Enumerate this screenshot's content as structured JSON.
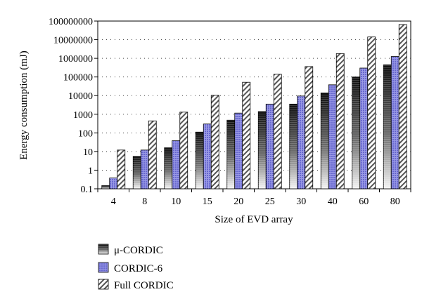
{
  "chart_data": {
    "type": "bar",
    "log_scale_y": true,
    "ylim": [
      0.1,
      100000000
    ],
    "y_ticks": [
      "100000000",
      "10000000",
      "1000000",
      "100000",
      "10000",
      "1000",
      "100",
      "10",
      "1",
      "0.1"
    ],
    "y_tick_values": [
      100000000,
      10000000,
      1000000,
      100000,
      10000,
      1000,
      100,
      10,
      1,
      0.1
    ],
    "xlabel": "Size of EVD array",
    "ylabel": "Energy consumption (mJ)",
    "categories": [
      "4",
      "8",
      "10",
      "15",
      "20",
      "25",
      "30",
      "40",
      "60",
      "80"
    ],
    "grid": "horizontal dotted",
    "legend_position": "bottom-left",
    "series": [
      {
        "name": "μ-CORDIC",
        "pattern": "gradient-dark",
        "values": [
          0.15,
          5.5,
          16,
          110,
          480,
          1400,
          3500,
          14000,
          100000,
          450000
        ]
      },
      {
        "name": "CORDIC-6",
        "pattern": "blue-dotted",
        "values": [
          0.38,
          12,
          38,
          300,
          1150,
          3500,
          9500,
          38000,
          300000,
          1250000
        ]
      },
      {
        "name": "Full CORDIC",
        "pattern": "diagonal-hatch",
        "values": [
          12,
          440,
          1300,
          10500,
          52000,
          140000,
          360000,
          1800000,
          14000000,
          65000000
        ]
      }
    ]
  }
}
